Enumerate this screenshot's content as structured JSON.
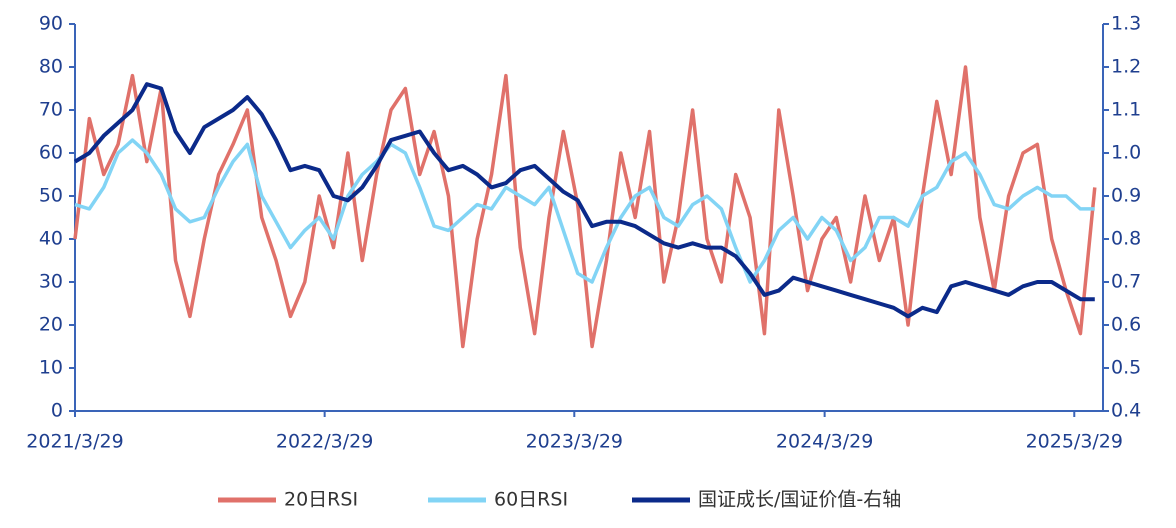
{
  "chart_data": {
    "type": "line",
    "x": [
      "2021-03-29",
      "2021-04-19",
      "2021-05-10",
      "2021-05-31",
      "2021-06-21",
      "2021-07-12",
      "2021-08-02",
      "2021-08-23",
      "2021-09-13",
      "2021-10-04",
      "2021-10-25",
      "2021-11-15",
      "2021-12-06",
      "2021-12-27",
      "2022-01-17",
      "2022-02-07",
      "2022-02-28",
      "2022-03-21",
      "2022-04-11",
      "2022-05-02",
      "2022-05-23",
      "2022-06-13",
      "2022-07-04",
      "2022-07-25",
      "2022-08-15",
      "2022-09-05",
      "2022-09-26",
      "2022-10-17",
      "2022-11-07",
      "2022-11-28",
      "2022-12-19",
      "2023-01-09",
      "2023-01-30",
      "2023-02-20",
      "2023-03-13",
      "2023-04-03",
      "2023-04-24",
      "2023-05-15",
      "2023-06-05",
      "2023-06-26",
      "2023-07-17",
      "2023-08-07",
      "2023-08-28",
      "2023-09-18",
      "2023-10-09",
      "2023-10-30",
      "2023-11-20",
      "2023-12-11",
      "2024-01-01",
      "2024-01-22",
      "2024-02-12",
      "2024-03-04",
      "2024-03-25",
      "2024-04-15",
      "2024-05-06",
      "2024-05-27",
      "2024-06-17",
      "2024-07-08",
      "2024-07-29",
      "2024-08-19",
      "2024-09-09",
      "2024-09-30",
      "2024-10-21",
      "2024-11-11",
      "2024-12-02",
      "2024-12-23",
      "2025-01-13",
      "2025-02-03",
      "2025-02-24",
      "2025-03-17",
      "2025-04-07",
      "2025-04-28"
    ],
    "xlim": [
      "2021-03-29",
      "2025-05-10"
    ],
    "xticks": [
      {
        "value": "2021-03-29",
        "label": "2021/3/29"
      },
      {
        "value": "2022-03-29",
        "label": "2022/3/29"
      },
      {
        "value": "2023-03-29",
        "label": "2023/3/29"
      },
      {
        "value": "2024-03-29",
        "label": "2024/3/29"
      },
      {
        "value": "2025-03-29",
        "label": "2025/3/29"
      }
    ],
    "ylim": [
      0,
      90
    ],
    "yticks": [
      0,
      10,
      20,
      30,
      40,
      50,
      60,
      70,
      80,
      90
    ],
    "y2lim": [
      0.4,
      1.3
    ],
    "y2ticks": [
      {
        "value": 0.4,
        "label": "0.4"
      },
      {
        "value": 0.5,
        "label": "0.5"
      },
      {
        "value": 0.6,
        "label": "0.6"
      },
      {
        "value": 0.7,
        "label": "0.7"
      },
      {
        "value": 0.8,
        "label": "0.8"
      },
      {
        "value": 0.9,
        "label": "0.9"
      },
      {
        "value": 1,
        "label": "1.0"
      },
      {
        "value": 1.1,
        "label": "1.1"
      },
      {
        "value": 1.2,
        "label": "1.2"
      },
      {
        "value": 1.3,
        "label": "1.3"
      }
    ],
    "legend": "bottom",
    "series": [
      {
        "name": "20日RSI",
        "color": "#e0716a",
        "values": [
          40,
          68,
          55,
          62,
          78,
          58,
          75,
          35,
          22,
          40,
          55,
          62,
          70,
          45,
          35,
          22,
          30,
          50,
          38,
          60,
          35,
          55,
          70,
          75,
          55,
          65,
          50,
          15,
          40,
          55,
          78,
          38,
          18,
          45,
          65,
          48,
          15,
          35,
          60,
          45,
          65,
          30,
          45,
          70,
          40,
          30,
          55,
          45,
          18,
          70,
          50,
          28,
          40,
          45,
          30,
          50,
          35,
          45,
          20,
          50,
          72,
          55,
          80,
          45,
          28,
          50,
          60,
          62,
          40,
          28,
          18,
          52
        ]
      },
      {
        "name": "60日RSI",
        "color": "#82d4f5",
        "values": [
          48,
          47,
          52,
          60,
          63,
          60,
          55,
          47,
          44,
          45,
          52,
          58,
          62,
          50,
          44,
          38,
          42,
          45,
          40,
          50,
          55,
          58,
          62,
          60,
          52,
          43,
          42,
          45,
          48,
          47,
          52,
          50,
          48,
          52,
          42,
          32,
          30,
          38,
          45,
          50,
          52,
          45,
          43,
          48,
          50,
          47,
          38,
          30,
          35,
          42,
          45,
          40,
          45,
          42,
          35,
          38,
          45,
          45,
          43,
          50,
          52,
          58,
          60,
          55,
          48,
          47,
          50,
          52,
          50,
          50,
          47,
          47
        ]
      },
      {
        "name": "国证成长/国证价值-右轴",
        "color": "#0b2a8a",
        "axis": "y2",
        "values": [
          0.98,
          1.0,
          1.04,
          1.07,
          1.1,
          1.16,
          1.15,
          1.05,
          1.0,
          1.06,
          1.08,
          1.1,
          1.13,
          1.09,
          1.03,
          0.96,
          0.97,
          0.96,
          0.9,
          0.89,
          0.92,
          0.97,
          1.03,
          1.04,
          1.05,
          1.0,
          0.96,
          0.97,
          0.95,
          0.92,
          0.93,
          0.96,
          0.97,
          0.94,
          0.91,
          0.89,
          0.83,
          0.84,
          0.84,
          0.83,
          0.81,
          0.79,
          0.78,
          0.79,
          0.78,
          0.78,
          0.76,
          0.72,
          0.67,
          0.68,
          0.71,
          0.7,
          0.69,
          0.68,
          0.67,
          0.66,
          0.65,
          0.64,
          0.62,
          0.64,
          0.63,
          0.69,
          0.7,
          0.69,
          0.68,
          0.67,
          0.69,
          0.7,
          0.7,
          0.68,
          0.66,
          0.66
        ]
      }
    ]
  }
}
